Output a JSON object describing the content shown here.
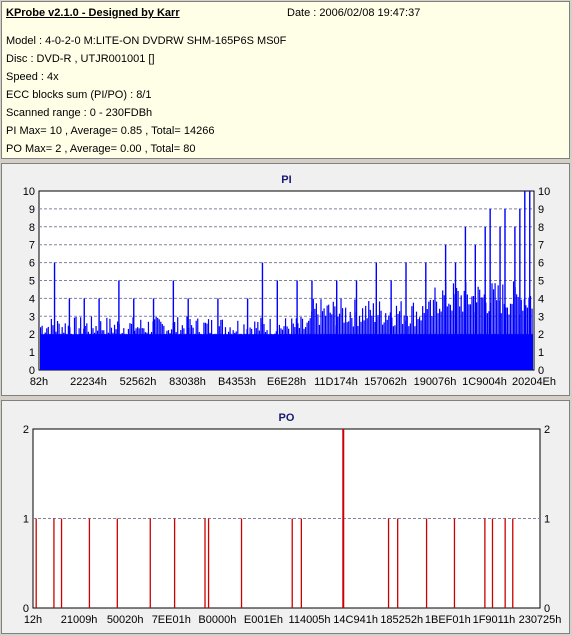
{
  "info": {
    "app_title": "KProbe v2.1.0 - Designed by Karr",
    "date": "Date : 2006/02/08 19:47:37",
    "model": "Model : 4-0-2-0 M:LITE-ON DVDRW SHM-165P6S MS0F",
    "disc": "Disc : DVD-R , UTJR001001 []",
    "speed": "Speed : 4x",
    "ecc": "ECC blocks sum (PI/PO) : 8/1",
    "range": "Scanned range : 0 - 230FDBh",
    "pi_stats": "PI Max= 10 , Average= 0.85 , Total= 14266",
    "po_stats": "PO Max= 2 , Average= 0.00 , Total= 80"
  },
  "chart_data": [
    {
      "type": "bar",
      "title": "PI",
      "ylim": [
        0,
        10
      ],
      "yticks": [
        "0",
        "1",
        "2",
        "3",
        "4",
        "5",
        "6",
        "7",
        "8",
        "9",
        "10"
      ],
      "xtick_labels": [
        "82h",
        "22234h",
        "52562h",
        "83038h",
        "B4353h",
        "E6E28h",
        "11D174h",
        "157062h",
        "190076h",
        "1C9004h",
        "20204Eh"
      ],
      "grid": true,
      "color": "#0000ff",
      "baseline_level": 2,
      "spikes": [
        {
          "x": 0.03,
          "v": 6
        },
        {
          "x": 0.06,
          "v": 4
        },
        {
          "x": 0.09,
          "v": 4
        },
        {
          "x": 0.12,
          "v": 4
        },
        {
          "x": 0.16,
          "v": 5
        },
        {
          "x": 0.19,
          "v": 4
        },
        {
          "x": 0.23,
          "v": 4
        },
        {
          "x": 0.27,
          "v": 5
        },
        {
          "x": 0.3,
          "v": 4
        },
        {
          "x": 0.36,
          "v": 4
        },
        {
          "x": 0.42,
          "v": 4
        },
        {
          "x": 0.45,
          "v": 6
        },
        {
          "x": 0.48,
          "v": 5
        },
        {
          "x": 0.52,
          "v": 5
        },
        {
          "x": 0.55,
          "v": 5
        },
        {
          "x": 0.6,
          "v": 5
        },
        {
          "x": 0.64,
          "v": 5
        },
        {
          "x": 0.68,
          "v": 6
        },
        {
          "x": 0.71,
          "v": 5
        },
        {
          "x": 0.74,
          "v": 6
        },
        {
          "x": 0.78,
          "v": 6
        },
        {
          "x": 0.82,
          "v": 7
        },
        {
          "x": 0.84,
          "v": 6
        },
        {
          "x": 0.86,
          "v": 8
        },
        {
          "x": 0.88,
          "v": 7
        },
        {
          "x": 0.9,
          "v": 8
        },
        {
          "x": 0.91,
          "v": 9
        },
        {
          "x": 0.93,
          "v": 8
        },
        {
          "x": 0.94,
          "v": 9
        },
        {
          "x": 0.96,
          "v": 8
        },
        {
          "x": 0.97,
          "v": 9
        },
        {
          "x": 0.98,
          "v": 10
        },
        {
          "x": 0.99,
          "v": 10
        }
      ]
    },
    {
      "type": "bar",
      "title": "PO",
      "ylim": [
        0,
        2
      ],
      "yticks": [
        "0",
        "1",
        "2"
      ],
      "xtick_labels": [
        "12h",
        "21009h",
        "50020h",
        "7EE01h",
        "B0000h",
        "E001Eh",
        "114005h",
        "14C941h",
        "185252h",
        "1BEF01h",
        "1F9011h",
        "230725h"
      ],
      "grid": true,
      "color": "#cc0000",
      "bars": [
        {
          "x": 0.005,
          "v": 1
        },
        {
          "x": 0.04,
          "v": 1
        },
        {
          "x": 0.055,
          "v": 1
        },
        {
          "x": 0.11,
          "v": 1
        },
        {
          "x": 0.165,
          "v": 1
        },
        {
          "x": 0.23,
          "v": 1
        },
        {
          "x": 0.278,
          "v": 1
        },
        {
          "x": 0.338,
          "v": 1
        },
        {
          "x": 0.345,
          "v": 1
        },
        {
          "x": 0.41,
          "v": 1
        },
        {
          "x": 0.51,
          "v": 1
        },
        {
          "x": 0.528,
          "v": 1
        },
        {
          "x": 0.61,
          "v": 2
        },
        {
          "x": 0.7,
          "v": 1
        },
        {
          "x": 0.718,
          "v": 1
        },
        {
          "x": 0.775,
          "v": 1
        },
        {
          "x": 0.83,
          "v": 1
        },
        {
          "x": 0.89,
          "v": 1
        },
        {
          "x": 0.905,
          "v": 1
        },
        {
          "x": 0.93,
          "v": 1
        },
        {
          "x": 0.945,
          "v": 1
        }
      ]
    }
  ]
}
